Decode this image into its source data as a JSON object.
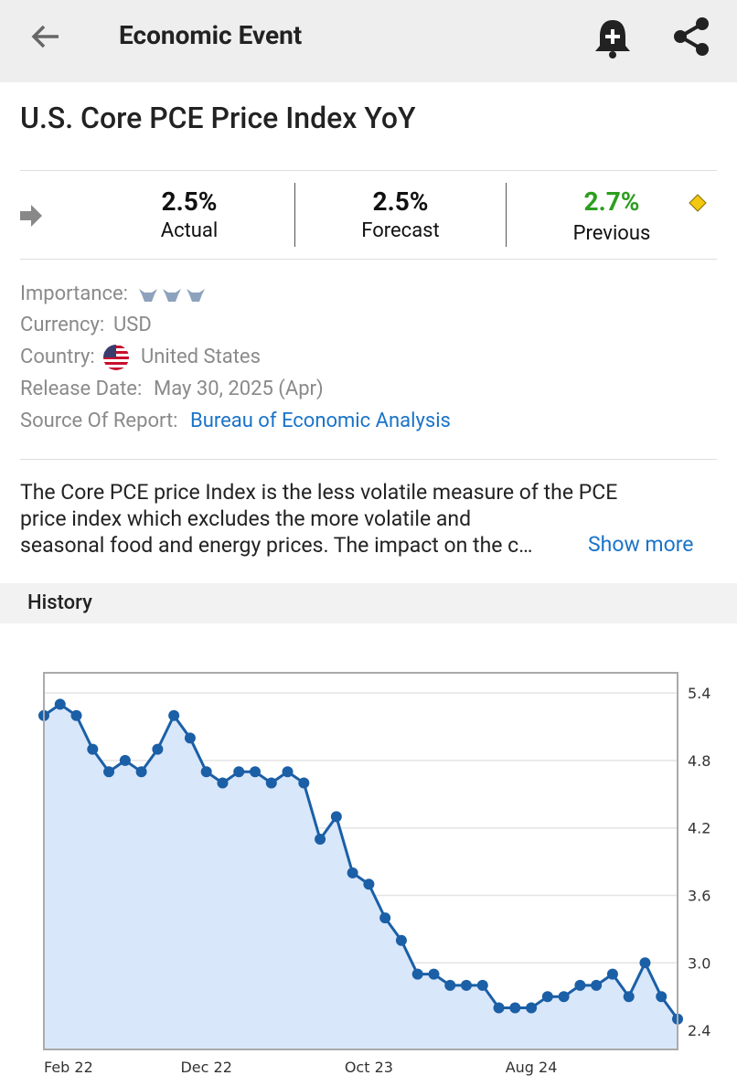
{
  "header": {
    "title": "Economic Event"
  },
  "event": {
    "title": "U.S. Core PCE Price Index YoY"
  },
  "stats": {
    "actual": {
      "value": "2.5%",
      "label": "Actual"
    },
    "forecast": {
      "value": "2.5%",
      "label": "Forecast"
    },
    "previous": {
      "value": "2.7%",
      "label": "Previous"
    }
  },
  "details": {
    "importance": "Importance:",
    "currency": {
      "label": "Currency:",
      "value": "USD"
    },
    "country": {
      "label": "Country:",
      "value": "United States"
    },
    "release": {
      "label": "Release Date:",
      "value": "May 30, 2025 (Apr)"
    },
    "source": {
      "label": "Source Of Report:",
      "value": "Bureau of Economic Analysis"
    }
  },
  "description": {
    "lines": [
      "The Core PCE price Index is the less volatile measure of the PCE",
      "price index which excludes the more volatile and",
      "seasonal food and energy prices. The impact on the c…"
    ],
    "more": "Show more"
  },
  "chart_data": {
    "type": "line",
    "title": "History",
    "categories": [
      "Feb 22",
      null,
      null,
      null,
      null,
      null,
      null,
      null,
      null,
      null,
      "Dec 22",
      null,
      null,
      null,
      null,
      null,
      null,
      null,
      null,
      null,
      "Oct 23",
      null,
      null,
      null,
      null,
      null,
      null,
      null,
      null,
      null,
      "Aug 24",
      null,
      null,
      null,
      null,
      null,
      null,
      null,
      null,
      null
    ],
    "values": [
      5.2,
      5.3,
      5.2,
      4.9,
      4.7,
      4.8,
      4.7,
      4.9,
      5.2,
      5.0,
      4.7,
      4.6,
      4.7,
      4.7,
      4.6,
      4.7,
      4.6,
      4.1,
      4.3,
      3.8,
      3.7,
      3.4,
      3.2,
      2.9,
      2.9,
      2.8,
      2.8,
      2.8,
      2.6,
      2.6,
      2.6,
      2.7,
      2.7,
      2.8,
      2.8,
      2.9,
      2.7,
      3.0,
      2.7,
      2.5
    ],
    "color": "#1b5fa6",
    "area_color": "#d9e7fb",
    "ylim": [
      2.23,
      5.58
    ],
    "yticks": [
      2.4,
      {
        "value": 3,
        "label": "3.0"
      },
      3.6,
      4.2,
      4.8,
      5.4
    ],
    "grid": true,
    "axis_side": "right"
  }
}
